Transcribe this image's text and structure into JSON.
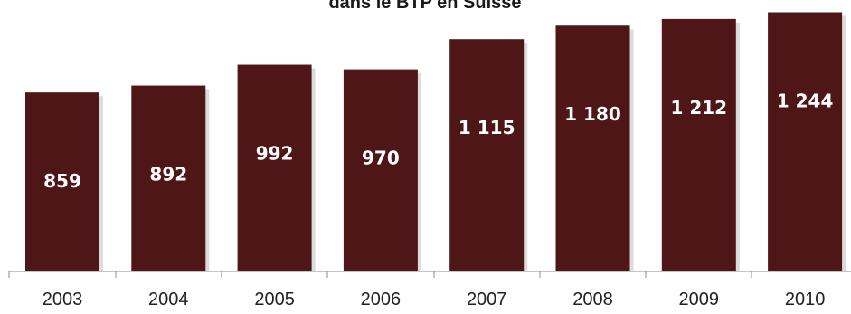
{
  "chart_data": {
    "type": "bar",
    "title": "dans le BTP en Suisse",
    "xlabel": "",
    "ylabel": "",
    "categories": [
      "2003",
      "2004",
      "2005",
      "2006",
      "2007",
      "2008",
      "2009",
      "2010"
    ],
    "values": [
      859,
      892,
      992,
      970,
      1115,
      1180,
      1212,
      1244
    ],
    "value_labels": [
      "859",
      "892",
      "992",
      "970",
      "1 115",
      "1 180",
      "1 212",
      "1 244"
    ],
    "ylim": [
      0,
      1300
    ],
    "grid": false,
    "legend": "none",
    "colors": {
      "bar": "#4e1616",
      "label": "#ffffff"
    }
  }
}
